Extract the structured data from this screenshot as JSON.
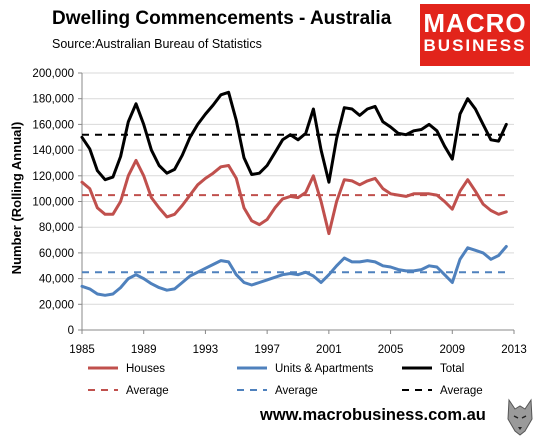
{
  "header": {
    "title": "Dwelling Commencements - Australia",
    "subtitle": "Source:Australian Bureau of Statistics"
  },
  "logo": {
    "line1": "MACRO",
    "line2": "BUSINESS",
    "color": "#e2241b"
  },
  "footer": {
    "url": "www.macrobusiness.com.au"
  },
  "colors": {
    "houses": "#c0504d",
    "units": "#4f81bd",
    "total": "#000000"
  },
  "chart_data": {
    "type": "line",
    "ylabel": "Number (Rolling Annual)",
    "xlabel": "",
    "xlim": [
      1985,
      2013
    ],
    "ylim": [
      0,
      200000
    ],
    "x_ticks": [
      "1985",
      "1989",
      "1993",
      "1997",
      "2001",
      "2005",
      "2009",
      "2013"
    ],
    "y_ticks": [
      "0",
      "20,000",
      "40,000",
      "60,000",
      "80,000",
      "100,000",
      "120,000",
      "140,000",
      "160,000",
      "180,000",
      "200,000"
    ],
    "grid": true,
    "legend_position": "bottom",
    "series": [
      {
        "name": "Houses",
        "color": "#c0504d",
        "dash": false,
        "x": [
          1985,
          1985.5,
          1986,
          1986.5,
          1987,
          1987.5,
          1988,
          1988.5,
          1989,
          1989.5,
          1990,
          1990.5,
          1991,
          1991.5,
          1992,
          1992.5,
          1993,
          1993.5,
          1994,
          1994.5,
          1995,
          1995.5,
          1996,
          1996.5,
          1997,
          1997.5,
          1998,
          1998.5,
          1999,
          1999.5,
          2000,
          2000.5,
          2001,
          2001.5,
          2002,
          2002.5,
          2003,
          2003.5,
          2004,
          2004.5,
          2005,
          2005.5,
          2006,
          2006.5,
          2007,
          2007.5,
          2008,
          2008.5,
          2009,
          2009.5,
          2010,
          2010.5,
          2011,
          2011.5,
          2012,
          2012.5
        ],
        "values": [
          115000,
          110000,
          95000,
          90000,
          90000,
          100000,
          120000,
          132000,
          120000,
          103000,
          95000,
          88000,
          90000,
          97000,
          105000,
          113000,
          118000,
          122000,
          127000,
          128000,
          118000,
          95000,
          85000,
          82000,
          86000,
          95000,
          102000,
          104000,
          103000,
          107000,
          120000,
          100000,
          75000,
          100000,
          117000,
          116000,
          113000,
          116000,
          118000,
          110000,
          106000,
          105000,
          104000,
          106000,
          106000,
          106000,
          105000,
          100000,
          94000,
          108000,
          117000,
          108000,
          98000,
          93000,
          90000,
          92000
        ]
      },
      {
        "name": "Units & Apartments",
        "color": "#4f81bd",
        "dash": false,
        "x": [
          1985,
          1985.5,
          1986,
          1986.5,
          1987,
          1987.5,
          1988,
          1988.5,
          1989,
          1989.5,
          1990,
          1990.5,
          1991,
          1991.5,
          1992,
          1992.5,
          1993,
          1993.5,
          1994,
          1994.5,
          1995,
          1995.5,
          1996,
          1996.5,
          1997,
          1997.5,
          1998,
          1998.5,
          1999,
          1999.5,
          2000,
          2000.5,
          2001,
          2001.5,
          2002,
          2002.5,
          2003,
          2003.5,
          2004,
          2004.5,
          2005,
          2005.5,
          2006,
          2006.5,
          2007,
          2007.5,
          2008,
          2008.5,
          2009,
          2009.5,
          2010,
          2010.5,
          2011,
          2011.5,
          2012,
          2012.5
        ],
        "values": [
          34000,
          32000,
          28000,
          27000,
          28000,
          33000,
          40000,
          43000,
          40000,
          36000,
          33000,
          31000,
          32000,
          37000,
          42000,
          45000,
          48000,
          51000,
          54000,
          53000,
          43000,
          37000,
          35000,
          37000,
          39000,
          41000,
          43000,
          44000,
          43000,
          45000,
          42000,
          37000,
          43000,
          50000,
          56000,
          53000,
          53000,
          54000,
          53000,
          50000,
          49000,
          47000,
          46000,
          46000,
          47000,
          50000,
          49000,
          43000,
          37000,
          55000,
          64000,
          62000,
          60000,
          55000,
          58000,
          65000
        ]
      },
      {
        "name": "Total",
        "color": "#000000",
        "dash": false,
        "x": [
          1985,
          1985.5,
          1986,
          1986.5,
          1987,
          1987.5,
          1988,
          1988.5,
          1989,
          1989.5,
          1990,
          1990.5,
          1991,
          1991.5,
          1992,
          1992.5,
          1993,
          1993.5,
          1994,
          1994.5,
          1995,
          1995.5,
          1996,
          1996.5,
          1997,
          1997.5,
          1998,
          1998.5,
          1999,
          1999.5,
          2000,
          2000.5,
          2001,
          2001.5,
          2002,
          2002.5,
          2003,
          2003.5,
          2004,
          2004.5,
          2005,
          2005.5,
          2006,
          2006.5,
          2007,
          2007.5,
          2008,
          2008.5,
          2009,
          2009.5,
          2010,
          2010.5,
          2011,
          2011.5,
          2012,
          2012.5
        ],
        "values": [
          150000,
          141000,
          124000,
          117000,
          119000,
          135000,
          162000,
          176000,
          160000,
          140000,
          128000,
          122000,
          125000,
          136000,
          150000,
          160000,
          168000,
          175000,
          183000,
          185000,
          163000,
          134000,
          121000,
          122000,
          128000,
          138000,
          148000,
          152000,
          148000,
          153000,
          172000,
          140000,
          115000,
          149000,
          173000,
          172000,
          167000,
          172000,
          174000,
          162000,
          158000,
          153000,
          152000,
          155000,
          156000,
          160000,
          155000,
          143000,
          133000,
          168000,
          180000,
          172000,
          160000,
          148000,
          147000,
          160000
        ]
      },
      {
        "name": "Average",
        "color": "#c0504d",
        "dash": true,
        "x": [
          1985,
          2012.5
        ],
        "values": [
          105000,
          105000
        ]
      },
      {
        "name": "Average",
        "color": "#4f81bd",
        "dash": true,
        "x": [
          1985,
          2012.5
        ],
        "values": [
          45000,
          45000
        ]
      },
      {
        "name": "Average",
        "color": "#000000",
        "dash": true,
        "x": [
          1985,
          2012.5
        ],
        "values": [
          152000,
          152000
        ]
      }
    ]
  }
}
